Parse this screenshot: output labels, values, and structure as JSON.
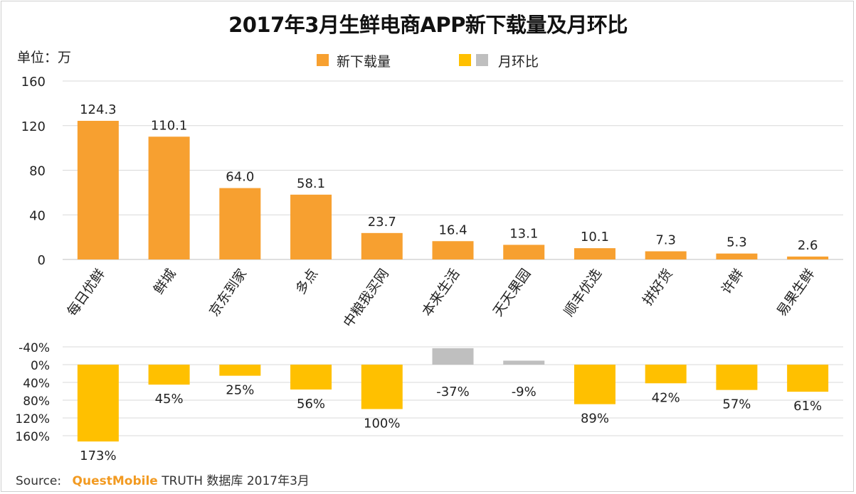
{
  "title": "2017年3月生鲜电商APP新下载量及月环比",
  "unit_label": "单位：万",
  "legend": {
    "downloads": "新下载量",
    "mom": "月环比"
  },
  "colors": {
    "downloads": "#f7a030",
    "mom_positive": "#ffc000",
    "mom_negative": "#bfbfbf",
    "grid": "#d9d9d9"
  },
  "source": {
    "label": "Source:",
    "brand": "QuestMobile",
    "text": "TRUTH 数据库 2017年3月"
  },
  "chart_data": [
    {
      "type": "bar",
      "name": "downloads",
      "title": "2017年3月生鲜电商APP新下载量",
      "ylabel": "单位：万",
      "ylim": [
        0,
        160
      ],
      "yticks": [
        "0",
        "40",
        "80",
        "120",
        "160"
      ],
      "ytick_values": [
        0,
        40,
        80,
        120,
        160
      ],
      "categories": [
        "每日优鲜",
        "鲜城",
        "京东到家",
        "多点",
        "中粮我买网",
        "本来生活",
        "天天果园",
        "顺丰优选",
        "拼好货",
        "许鲜",
        "易果生鲜"
      ],
      "values": [
        124.3,
        110.1,
        64.0,
        58.1,
        23.7,
        16.4,
        13.1,
        10.1,
        7.3,
        5.3,
        2.6
      ],
      "value_labels": [
        "124.3",
        "110.1",
        "64.0",
        "58.1",
        "23.7",
        "16.4",
        "13.1",
        "10.1",
        "7.3",
        "5.3",
        "2.6"
      ],
      "series_name": "新下载量"
    },
    {
      "type": "bar",
      "name": "mom",
      "title": "月环比",
      "orientation": "downward-positive",
      "ylim": [
        -40,
        160
      ],
      "yticks": [
        "-40%",
        "0%",
        "40%",
        "80%",
        "120%",
        "160%"
      ],
      "ytick_values": [
        -40,
        0,
        40,
        80,
        120,
        160
      ],
      "categories": [
        "每日优鲜",
        "鲜城",
        "京东到家",
        "多点",
        "中粮我买网",
        "本来生活",
        "天天果园",
        "顺丰优选",
        "拼好货",
        "许鲜",
        "易果生鲜"
      ],
      "values": [
        173,
        45,
        25,
        56,
        100,
        -37,
        -9,
        89,
        42,
        57,
        61
      ],
      "value_labels": [
        "173%",
        "45%",
        "25%",
        "56%",
        "100%",
        "-37%",
        "-9%",
        "89%",
        "42%",
        "57%",
        "61%"
      ],
      "series_name": "月环比"
    }
  ]
}
